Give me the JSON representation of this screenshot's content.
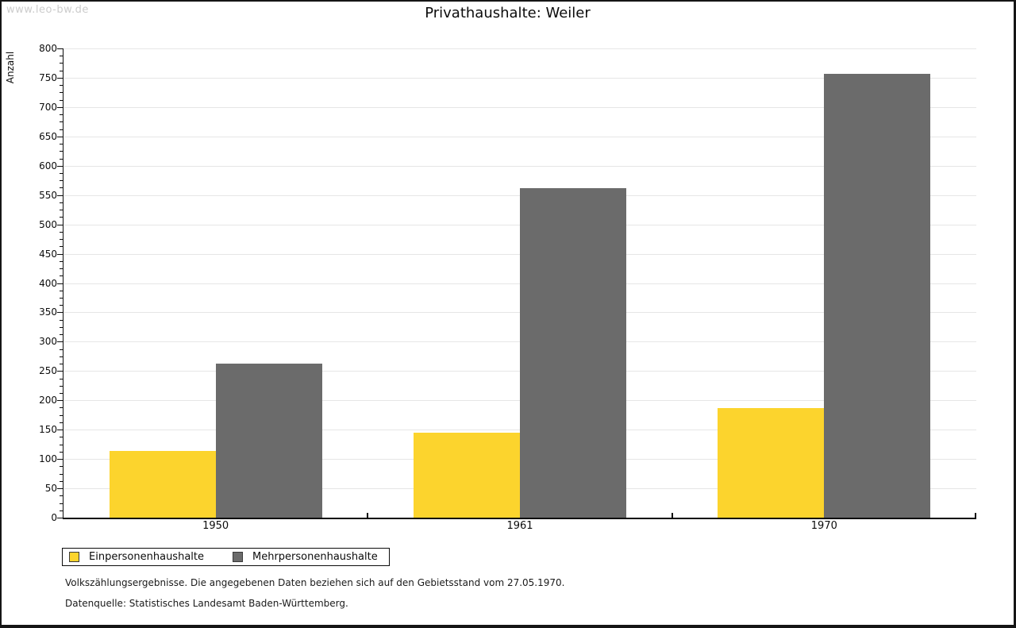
{
  "watermark": "www.leo-bw.de",
  "chart_data": {
    "type": "bar",
    "title": "Privathaushalte: Weiler",
    "ylabel": "Anzahl",
    "xlabel": "",
    "categories": [
      "1950",
      "1961",
      "1970"
    ],
    "series": [
      {
        "name": "Einpersonenhaushalte",
        "color": "#fcd42d",
        "values": [
          114,
          145,
          187
        ]
      },
      {
        "name": "Mehrpersonenhaushalte",
        "color": "#6b6b6b",
        "values": [
          262,
          562,
          757
        ]
      }
    ],
    "ylim": [
      0,
      800
    ],
    "y_major_step": 50,
    "y_minor_step": 12.5,
    "grid": "horizontal-major",
    "legend_position": "bottom-left"
  },
  "footnotes": {
    "line1": "Volkszählungsergebnisse. Die angegebenen Daten beziehen sich auf den Gebietsstand vom 27.05.1970.",
    "line2": "Datenquelle: Statistisches Landesamt Baden-Württemberg."
  }
}
